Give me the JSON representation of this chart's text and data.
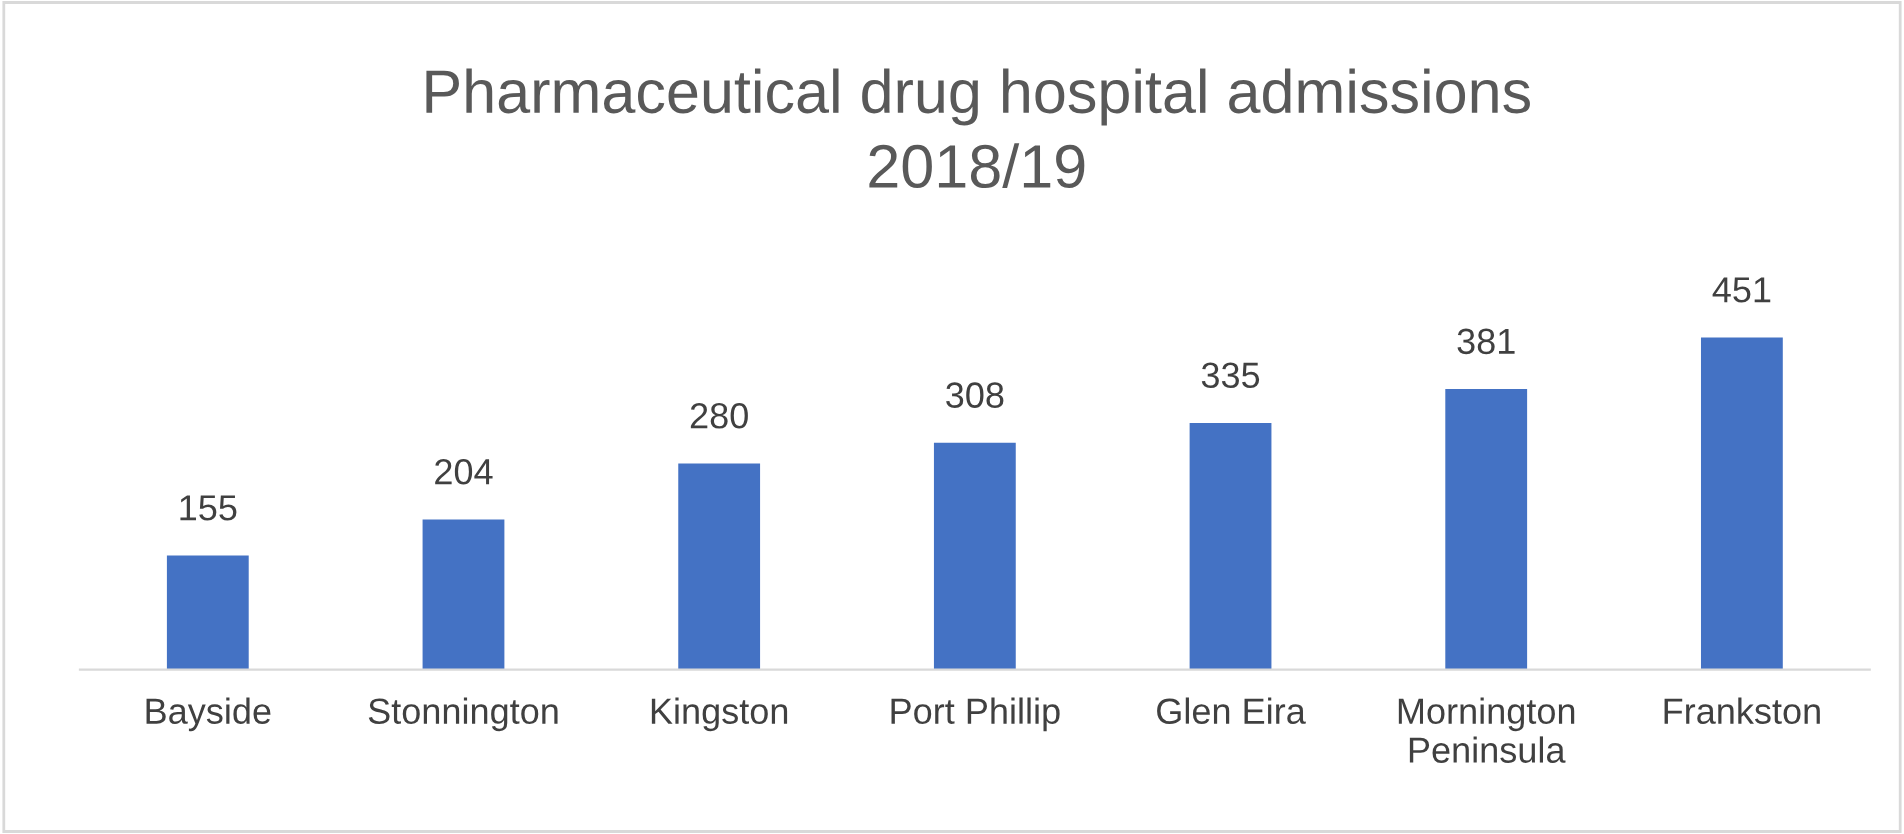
{
  "chart_data": {
    "type": "bar",
    "title": "Pharmaceutical drug hospital admissions\n2018/19",
    "categories": [
      "Bayside",
      "Stonnington",
      "Kingston",
      "Port Phillip",
      "Glen Eira",
      "Mornington\nPeninsula",
      "Frankston"
    ],
    "values": [
      155,
      204,
      280,
      308,
      335,
      381,
      451
    ],
    "color": "#4472c4",
    "data_labels": true,
    "grid": false,
    "legend": false,
    "tick_labels": "x"
  }
}
